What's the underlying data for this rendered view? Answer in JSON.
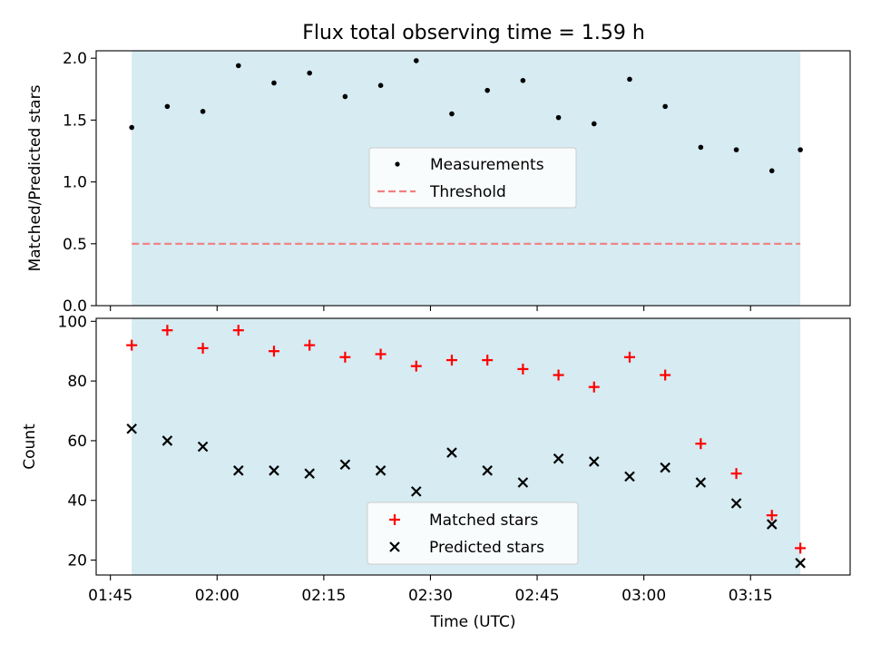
{
  "title": "Flux total observing time = 1.59 h",
  "chart_data": [
    {
      "type": "scatter",
      "title": "Flux total observing time = 1.59 h",
      "xlabel": "",
      "ylabel": "Matched/Predicted stars",
      "ylim": [
        0,
        2.06
      ],
      "yticks": [
        0.0,
        0.5,
        1.0,
        1.5,
        2.0
      ],
      "ytick_labels": [
        "0.0",
        "0.5",
        "1.0",
        "1.5",
        "2.0"
      ],
      "grid": false,
      "legend": "center",
      "shaded_span": {
        "start": "01:48",
        "end": "03:22",
        "color": "#add8e6"
      },
      "threshold": {
        "name": "Threshold",
        "value": 0.5,
        "style": "dashed",
        "color": "#f08080"
      },
      "series": [
        {
          "name": "Measurements",
          "marker": "dot",
          "color": "#000000",
          "x": [
            "01:48",
            "01:53",
            "01:58",
            "02:03",
            "02:08",
            "02:13",
            "02:18",
            "02:23",
            "02:28",
            "02:33",
            "02:38",
            "02:43",
            "02:48",
            "02:53",
            "02:58",
            "03:03",
            "03:08",
            "03:13",
            "03:18",
            "03:22"
          ],
          "y": [
            1.44,
            1.61,
            1.57,
            1.94,
            1.8,
            1.88,
            1.69,
            1.78,
            1.98,
            1.55,
            1.74,
            1.82,
            1.52,
            1.47,
            1.83,
            1.61,
            1.28,
            1.26,
            1.09,
            1.26
          ]
        }
      ]
    },
    {
      "type": "scatter",
      "xlabel": "Time (UTC)",
      "ylabel": "Count",
      "ylim": [
        15,
        101
      ],
      "yticks": [
        20,
        40,
        60,
        80,
        100
      ],
      "xlim": [
        "01:43",
        "03:29"
      ],
      "xticks": [
        "01:45",
        "02:00",
        "02:15",
        "02:30",
        "02:45",
        "03:00",
        "03:15"
      ],
      "grid": false,
      "legend": "lower center",
      "shaded_span": {
        "start": "01:48",
        "end": "03:22",
        "color": "#add8e6"
      },
      "series": [
        {
          "name": "Matched stars",
          "marker": "plus",
          "color": "#ff0000",
          "x": [
            "01:48",
            "01:53",
            "01:58",
            "02:03",
            "02:08",
            "02:13",
            "02:18",
            "02:23",
            "02:28",
            "02:33",
            "02:38",
            "02:43",
            "02:48",
            "02:53",
            "02:58",
            "03:03",
            "03:08",
            "03:13",
            "03:18",
            "03:22"
          ],
          "y": [
            92,
            97,
            91,
            97,
            90,
            92,
            88,
            89,
            85,
            87,
            87,
            84,
            82,
            78,
            88,
            82,
            59,
            49,
            35,
            24
          ]
        },
        {
          "name": "Predicted stars",
          "marker": "x",
          "color": "#000000",
          "x": [
            "01:48",
            "01:53",
            "01:58",
            "02:03",
            "02:08",
            "02:13",
            "02:18",
            "02:23",
            "02:28",
            "02:33",
            "02:38",
            "02:43",
            "02:48",
            "02:53",
            "02:58",
            "03:03",
            "03:08",
            "03:13",
            "03:18",
            "03:22"
          ],
          "y": [
            64,
            60,
            58,
            50,
            50,
            49,
            52,
            50,
            43,
            56,
            50,
            46,
            54,
            53,
            48,
            51,
            46,
            39,
            32,
            19
          ]
        }
      ]
    }
  ]
}
